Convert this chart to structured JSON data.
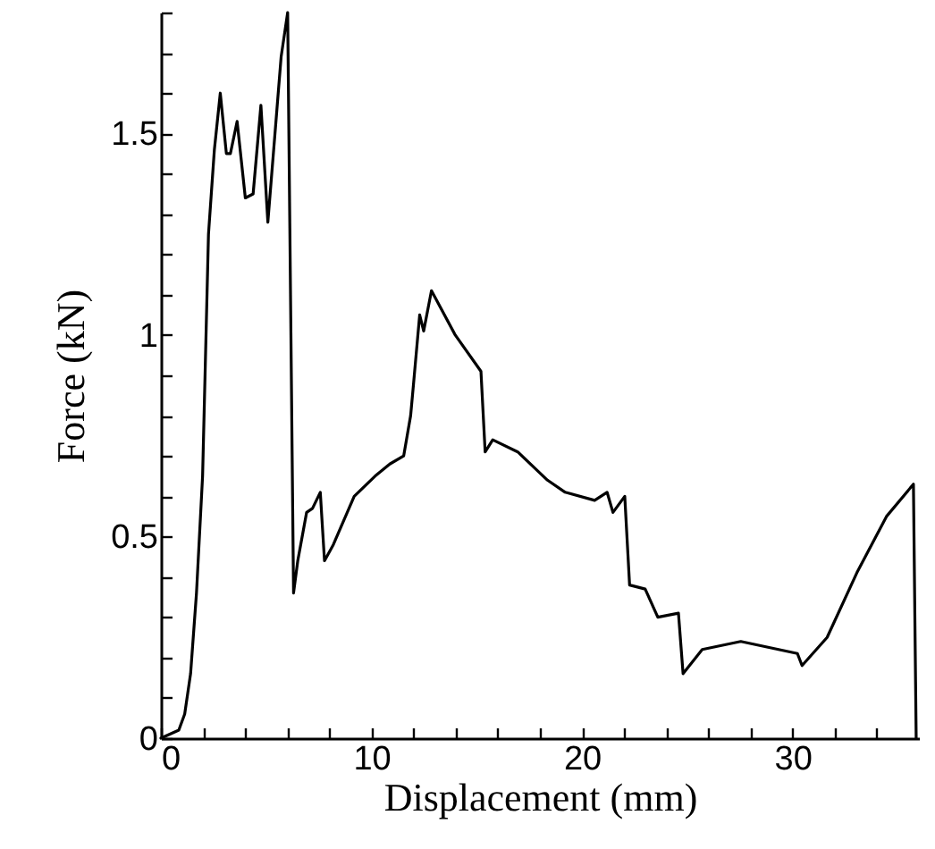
{
  "chart_data": {
    "type": "line",
    "xlabel": "Displacement (mm)",
    "ylabel": "Force (kN)",
    "x": [
      0,
      0.85,
      1.13,
      1.41,
      1.69,
      1.98,
      2.26,
      2.54,
      2.82,
      3.11,
      3.3,
      3.62,
      4.01,
      4.38,
      4.75,
      5.08,
      5.51,
      5.71,
      6.02,
      6.3,
      6.5,
      6.92,
      7.2,
      7.57,
      7.77,
      8.19,
      9.18,
      10.17,
      10.87,
      11.53,
      11.86,
      12.0,
      12.29,
      12.48,
      12.85,
      13.98,
      15.2,
      15.4,
      15.76,
      16.95,
      18.36,
      19.2,
      20.6,
      21.19,
      21.47,
      22.03,
      22.26,
      23.0,
      23.6,
      24.58,
      24.8,
      25.71,
      27.54,
      30.23,
      30.45,
      31.64,
      33.05,
      34.46,
      35.74,
      35.87
    ],
    "series": [
      {
        "color": "#000000",
        "values": [
          0,
          0.02,
          0.06,
          0.16,
          0.36,
          0.65,
          1.25,
          1.46,
          1.6,
          1.45,
          1.45,
          1.53,
          1.34,
          1.35,
          1.57,
          1.28,
          1.56,
          1.69,
          1.8,
          0.36,
          0.44,
          0.56,
          0.57,
          0.61,
          0.44,
          0.48,
          0.6,
          0.65,
          0.68,
          0.7,
          0.8,
          0.88,
          1.05,
          1.01,
          1.11,
          1.0,
          0.91,
          0.71,
          0.74,
          0.71,
          0.64,
          0.61,
          0.59,
          0.61,
          0.56,
          0.6,
          0.38,
          0.37,
          0.3,
          0.31,
          0.16,
          0.22,
          0.24,
          0.21,
          0.18,
          0.25,
          0.41,
          0.55,
          0.63,
          0
        ]
      }
    ],
    "xlim": [
      0,
      36
    ],
    "ylim": [
      0,
      1.8
    ],
    "xticks": [
      0,
      {
        "value": 2,
        "label": null
      },
      {
        "value": 4,
        "label": null
      },
      {
        "value": 6,
        "label": null
      },
      {
        "value": 8,
        "label": null
      },
      10,
      {
        "value": 12,
        "label": null
      },
      {
        "value": 14,
        "label": null
      },
      {
        "value": 16,
        "label": null
      },
      {
        "value": 18,
        "label": null
      },
      20,
      {
        "value": 22,
        "label": null
      },
      {
        "value": 24,
        "label": null
      },
      {
        "value": 26,
        "label": null
      },
      {
        "value": 28,
        "label": null
      },
      30,
      {
        "value": 32,
        "label": null
      },
      {
        "value": 34,
        "label": null
      }
    ],
    "yticks": [
      0,
      {
        "value": 0.1,
        "label": null
      },
      {
        "value": 0.2,
        "label": null
      },
      {
        "value": 0.3,
        "label": null
      },
      {
        "value": 0.4,
        "label": null
      },
      0.5,
      {
        "value": 0.6,
        "label": null
      },
      {
        "value": 0.7,
        "label": null
      },
      {
        "value": 0.8,
        "label": null
      },
      {
        "value": 0.9,
        "label": null
      },
      1,
      {
        "value": 1.1,
        "label": null
      },
      {
        "value": 1.2,
        "label": null
      },
      {
        "value": 1.3,
        "label": null
      },
      {
        "value": 1.4,
        "label": null
      },
      1.5,
      {
        "value": 1.6,
        "label": null
      },
      {
        "value": 1.7,
        "label": null
      },
      {
        "value": 1.8,
        "label": null
      }
    ],
    "line_style": "solid",
    "marker": "none"
  }
}
